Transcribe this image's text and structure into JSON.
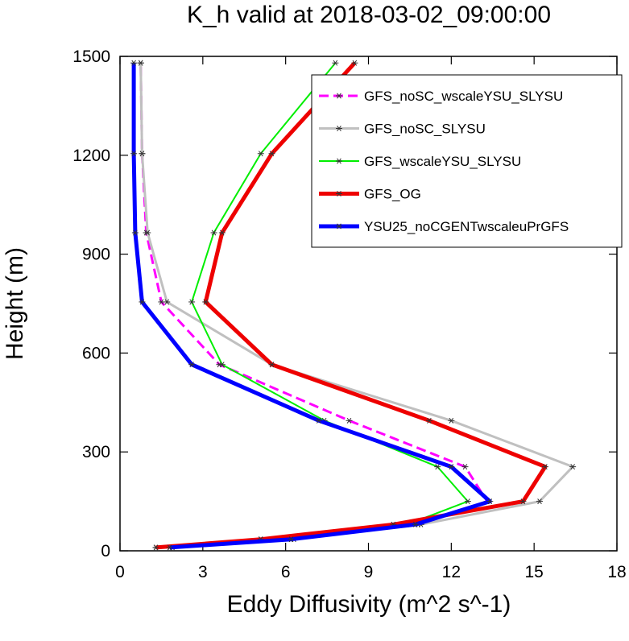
{
  "chart_data": {
    "type": "line",
    "title": "K_h valid at 2018-03-02_09:00:00",
    "xlabel": "Eddy Diffusivity (m^2 s^-1)",
    "ylabel": "Height (m)",
    "xlim": [
      0,
      18
    ],
    "ylim": [
      0,
      1500
    ],
    "xticks": [
      0,
      3,
      6,
      9,
      12,
      15,
      18
    ],
    "yticks": [
      0,
      300,
      600,
      900,
      1200,
      1500
    ],
    "xtick_labels": [
      "0",
      "3",
      "6",
      "9",
      "12",
      "15",
      "18"
    ],
    "ytick_labels": [
      "0",
      "300",
      "600",
      "900",
      "1200",
      "1500"
    ],
    "grid": false,
    "legend_position": "top-right",
    "y": [
      10,
      35,
      80,
      150,
      255,
      395,
      565,
      755,
      965,
      1205,
      1480
    ],
    "series": [
      {
        "name": "GFS_noSC_wscaleYSU_SLYSU",
        "color": "#ff00ff",
        "dash": true,
        "width": 3,
        "x": [
          1.8,
          6.2,
          10.8,
          13.3,
          12.5,
          8.3,
          3.6,
          1.5,
          0.95,
          0.8,
          0.75
        ]
      },
      {
        "name": "GFS_noSC_SLYSU",
        "color": "#c0c0c0",
        "dash": false,
        "width": 3,
        "x": [
          1.9,
          6.3,
          10.9,
          15.2,
          16.4,
          12.0,
          5.5,
          1.7,
          1.0,
          0.8,
          0.75
        ]
      },
      {
        "name": "GFS_wscaleYSU_SLYSU",
        "color": "#00ee00",
        "dash": false,
        "width": 2,
        "x": [
          1.3,
          5.1,
          10.4,
          12.6,
          11.5,
          7.4,
          3.7,
          2.6,
          3.4,
          5.1,
          7.8
        ]
      },
      {
        "name": "GFS_OG",
        "color": "#ee0000",
        "dash": false,
        "width": 5,
        "x": [
          1.3,
          5.1,
          9.9,
          14.6,
          15.4,
          11.2,
          5.5,
          3.1,
          3.7,
          5.5,
          8.5
        ]
      },
      {
        "name": "YSU25_noCGENTwscaleuPrGFS",
        "color": "#0000ff",
        "dash": false,
        "width": 5,
        "x": [
          1.8,
          6.2,
          10.7,
          13.4,
          12.0,
          7.2,
          2.6,
          0.8,
          0.55,
          0.5,
          0.5
        ]
      }
    ]
  }
}
